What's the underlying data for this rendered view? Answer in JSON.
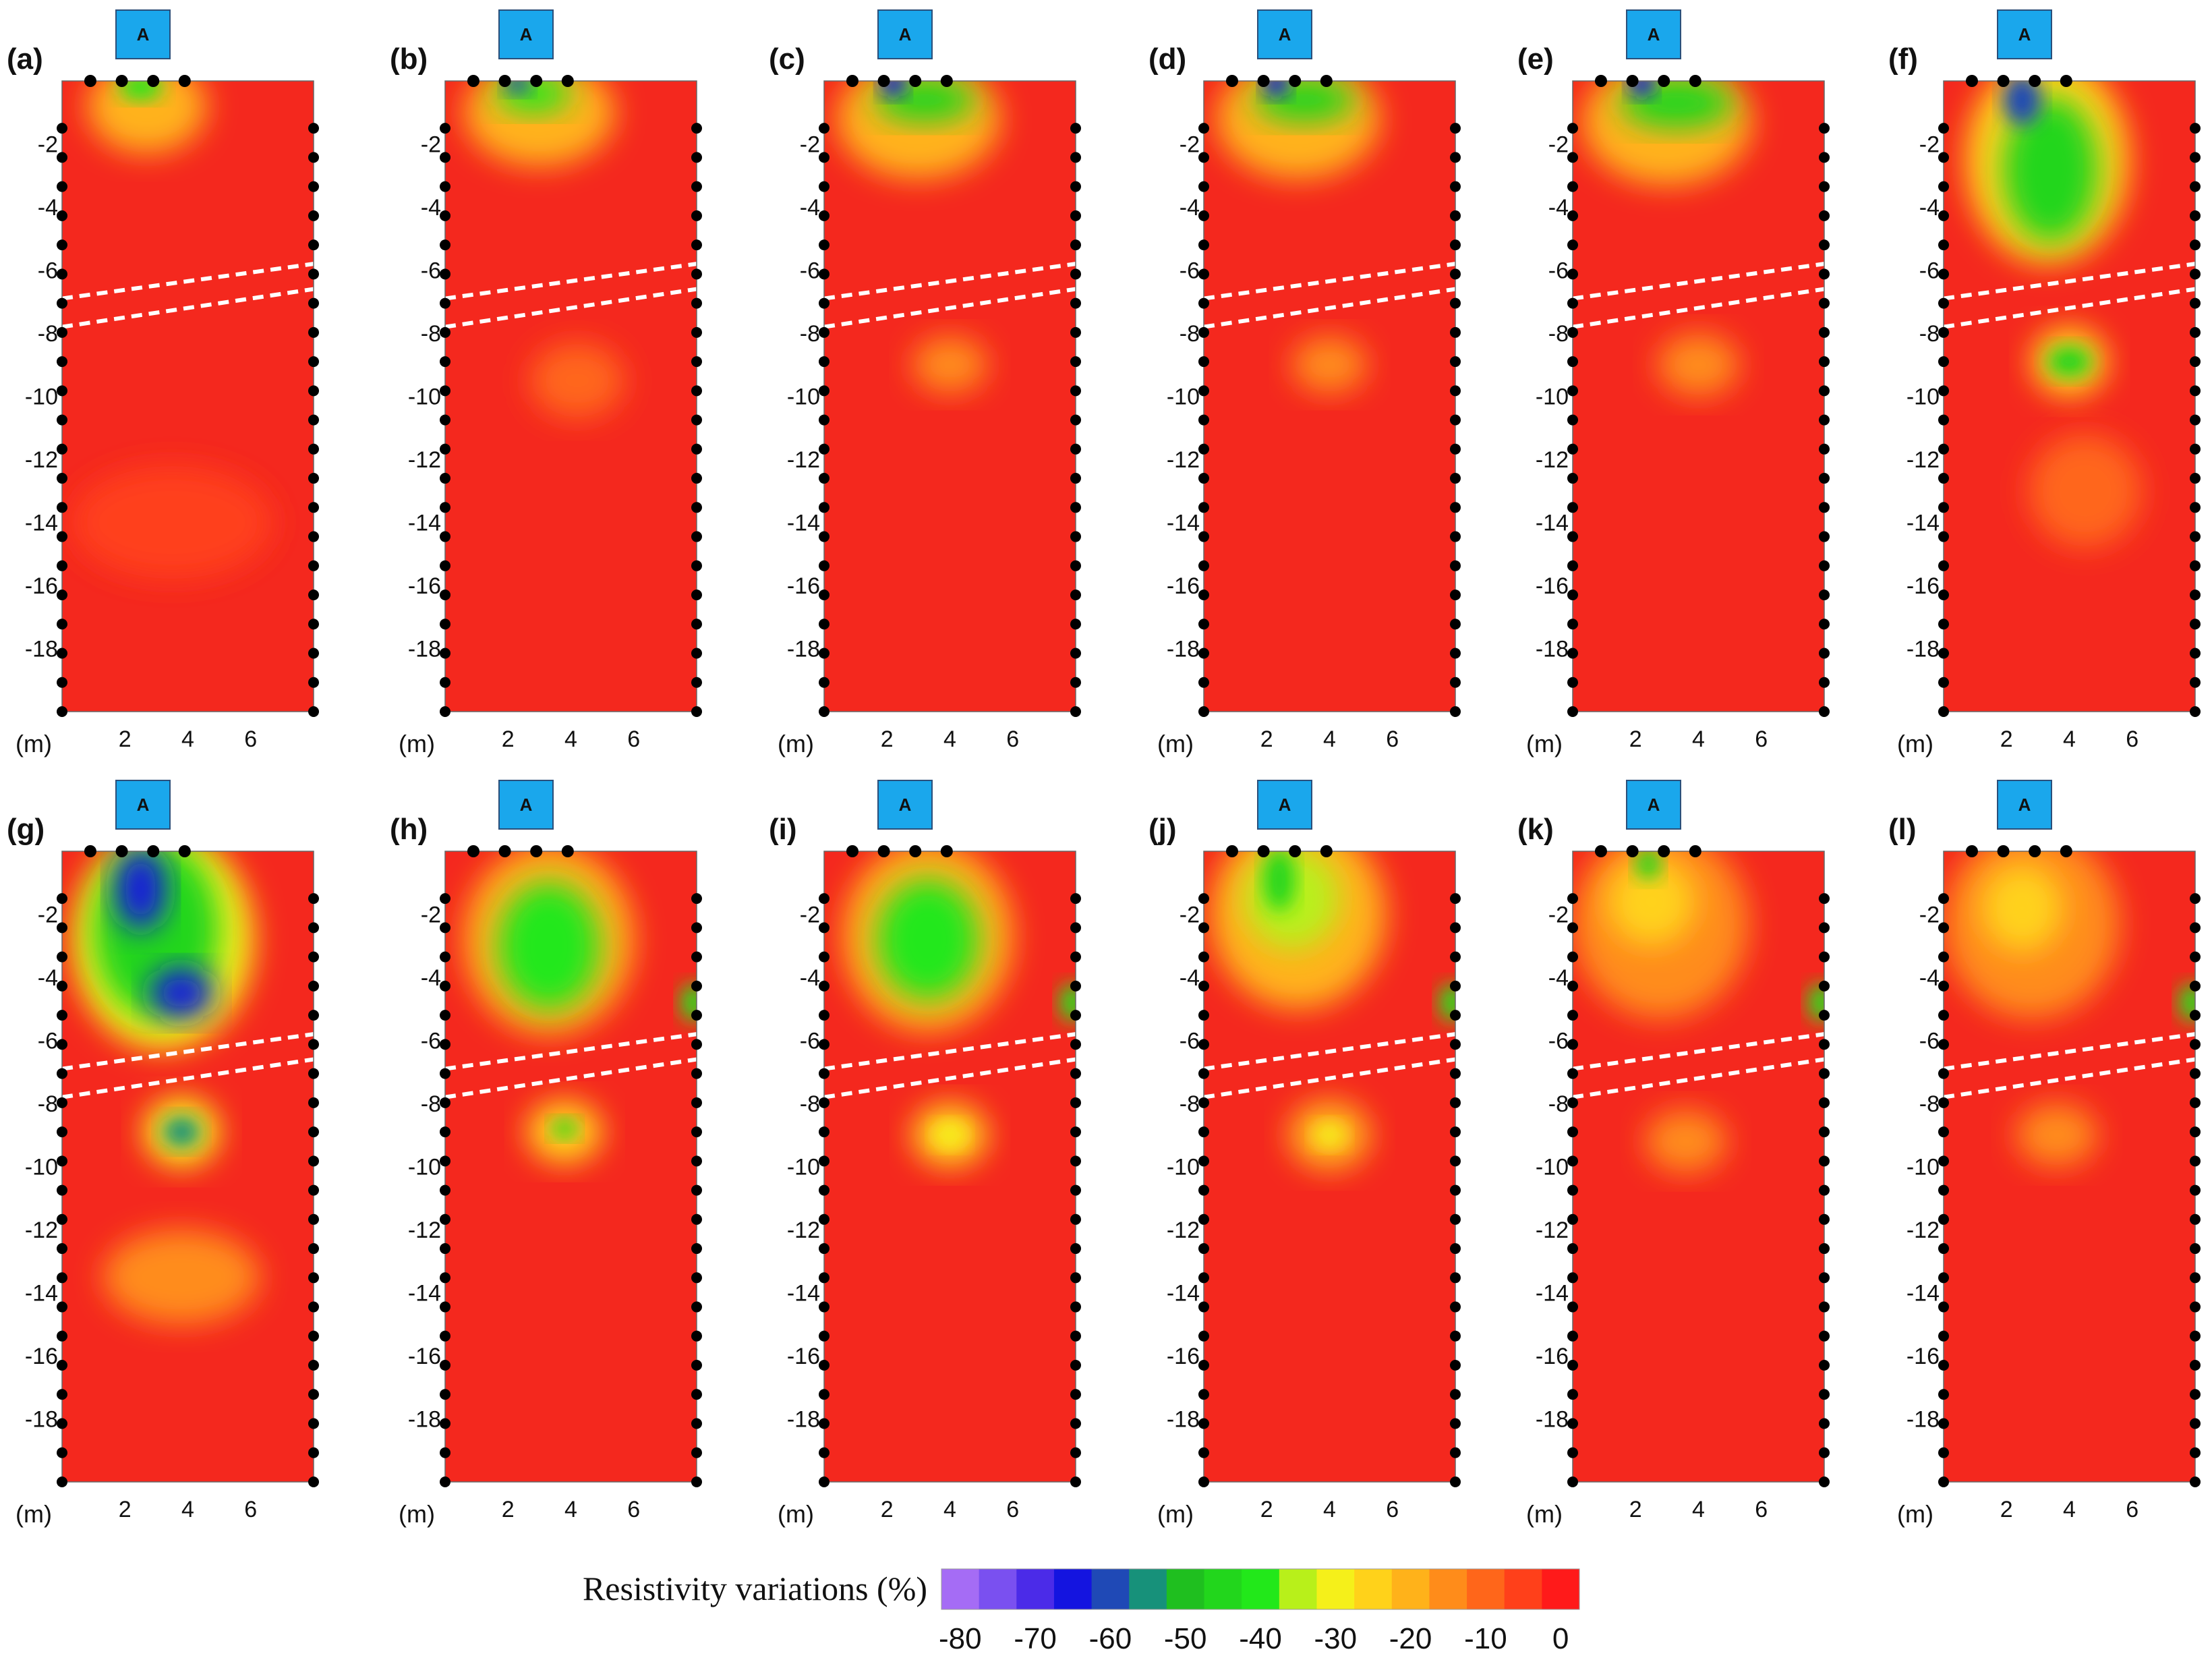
{
  "figure": {
    "marker_text": "A",
    "unit_label": "(m)"
  },
  "chart_data": {
    "type": "heatmap",
    "subtype": "resistivity-variation cross-sections (12 panels)",
    "x_axis": {
      "unit": "m",
      "range": [
        0,
        8
      ],
      "tick_values": [
        2,
        4,
        6
      ]
    },
    "y_axis": {
      "unit": "m",
      "range": [
        -20,
        0
      ],
      "tick_values": [
        -2,
        -4,
        -6,
        -8,
        -10,
        -12,
        -14,
        -16,
        -18
      ]
    },
    "colorbar": {
      "title": "Resistivity variations (%)",
      "range": [
        -80,
        0
      ],
      "tick_values": [
        -80,
        -70,
        -60,
        -50,
        -40,
        -30,
        -20,
        -10,
        0
      ],
      "bins": [
        {
          "from": -80,
          "to": -75,
          "color": "#a56cf5"
        },
        {
          "from": -75,
          "to": -70,
          "color": "#7a50f0"
        },
        {
          "from": -70,
          "to": -65,
          "color": "#4b2be8"
        },
        {
          "from": -65,
          "to": -60,
          "color": "#1414e0"
        },
        {
          "from": -60,
          "to": -55,
          "color": "#1f49b6"
        },
        {
          "from": -55,
          "to": -50,
          "color": "#17917a"
        },
        {
          "from": -50,
          "to": -45,
          "color": "#1fbf1f"
        },
        {
          "from": -45,
          "to": -40,
          "color": "#22d61c"
        },
        {
          "from": -40,
          "to": -35,
          "color": "#22e81a"
        },
        {
          "from": -35,
          "to": -30,
          "color": "#b8f01a"
        },
        {
          "from": -30,
          "to": -25,
          "color": "#f5f01a"
        },
        {
          "from": -25,
          "to": -20,
          "color": "#ffd21a"
        },
        {
          "from": -20,
          "to": -15,
          "color": "#ffb21a"
        },
        {
          "from": -15,
          "to": -10,
          "color": "#ff8c1a"
        },
        {
          "from": -10,
          "to": -5,
          "color": "#ff661a"
        },
        {
          "from": -5,
          "to": 0,
          "color": "#ff401a"
        },
        {
          "from": 0,
          "to": 5,
          "color": "#ff1a1a"
        }
      ]
    },
    "background_color": "#f4281e",
    "fracture_band": {
      "left_depths": [
        -6.9,
        -7.8
      ],
      "right_depths": [
        -5.8,
        -6.6
      ]
    },
    "panels": [
      {
        "label": "(a)",
        "anomalies": [
          {
            "x": 2.7,
            "depth": -0.8,
            "rx": 1.9,
            "ry": 1.5,
            "value": -20
          },
          {
            "x": 2.5,
            "depth": -0.2,
            "rx": 0.7,
            "ry": 0.4,
            "value": -38
          },
          {
            "x": 3.5,
            "depth": -14.0,
            "rx": 3.2,
            "ry": 1.8,
            "value": -4
          }
        ]
      },
      {
        "label": "(b)",
        "anomalies": [
          {
            "x": 3.0,
            "depth": -1.0,
            "rx": 2.4,
            "ry": 1.7,
            "value": -20
          },
          {
            "x": 2.8,
            "depth": -0.4,
            "rx": 1.2,
            "ry": 0.6,
            "value": -40
          },
          {
            "x": 2.3,
            "depth": -0.1,
            "rx": 0.4,
            "ry": 0.3,
            "value": -60
          },
          {
            "x": 4.2,
            "depth": -9.5,
            "rx": 1.5,
            "ry": 1.2,
            "value": -8
          }
        ]
      },
      {
        "label": "(c)",
        "anomalies": [
          {
            "x": 3.0,
            "depth": -1.2,
            "rx": 2.6,
            "ry": 1.9,
            "value": -20
          },
          {
            "x": 3.2,
            "depth": -0.6,
            "rx": 1.6,
            "ry": 0.7,
            "value": -42
          },
          {
            "x": 2.2,
            "depth": -0.1,
            "rx": 0.4,
            "ry": 0.4,
            "value": -62
          },
          {
            "x": 4.0,
            "depth": -9.0,
            "rx": 1.2,
            "ry": 0.9,
            "value": -15
          }
        ]
      },
      {
        "label": "(d)",
        "anomalies": [
          {
            "x": 3.0,
            "depth": -1.2,
            "rx": 2.6,
            "ry": 1.9,
            "value": -20
          },
          {
            "x": 3.2,
            "depth": -0.6,
            "rx": 1.6,
            "ry": 0.7,
            "value": -42
          },
          {
            "x": 2.3,
            "depth": -0.1,
            "rx": 0.4,
            "ry": 0.4,
            "value": -62
          },
          {
            "x": 4.0,
            "depth": -9.0,
            "rx": 1.2,
            "ry": 0.9,
            "value": -15
          }
        ]
      },
      {
        "label": "(e)",
        "anomalies": [
          {
            "x": 3.0,
            "depth": -1.3,
            "rx": 2.7,
            "ry": 2.0,
            "value": -20
          },
          {
            "x": 3.3,
            "depth": -0.7,
            "rx": 1.8,
            "ry": 0.8,
            "value": -42
          },
          {
            "x": 2.2,
            "depth": -0.1,
            "rx": 0.4,
            "ry": 0.4,
            "value": -62
          },
          {
            "x": 4.0,
            "depth": -9.0,
            "rx": 1.3,
            "ry": 1.0,
            "value": -15
          }
        ]
      },
      {
        "label": "(f)",
        "anomalies": [
          {
            "x": 3.3,
            "depth": -2.5,
            "rx": 2.6,
            "ry": 3.3,
            "value": -22
          },
          {
            "x": 3.4,
            "depth": -2.8,
            "rx": 1.5,
            "ry": 2.3,
            "value": -42
          },
          {
            "x": 2.5,
            "depth": -0.6,
            "rx": 0.6,
            "ry": 0.8,
            "value": -58
          },
          {
            "x": 4.0,
            "depth": -8.9,
            "rx": 1.2,
            "ry": 1.1,
            "value": -25
          },
          {
            "x": 4.0,
            "depth": -8.9,
            "rx": 0.7,
            "ry": 0.5,
            "value": -42
          },
          {
            "x": 4.5,
            "depth": -13.0,
            "rx": 1.8,
            "ry": 1.8,
            "value": -10
          }
        ]
      },
      {
        "label": "(g)",
        "anomalies": [
          {
            "x": 3.2,
            "depth": -2.8,
            "rx": 2.9,
            "ry": 3.5,
            "value": -30
          },
          {
            "x": 3.0,
            "depth": -2.5,
            "rx": 2.0,
            "ry": 2.8,
            "value": -45
          },
          {
            "x": 2.5,
            "depth": -1.2,
            "rx": 0.8,
            "ry": 1.3,
            "value": -65
          },
          {
            "x": 3.8,
            "depth": -4.5,
            "rx": 1.0,
            "ry": 0.8,
            "value": -62
          },
          {
            "x": 3.8,
            "depth": -8.9,
            "rx": 1.2,
            "ry": 1.1,
            "value": -30
          },
          {
            "x": 3.8,
            "depth": -8.9,
            "rx": 0.6,
            "ry": 0.5,
            "value": -55
          },
          {
            "x": 3.8,
            "depth": -13.5,
            "rx": 2.5,
            "ry": 1.5,
            "value": -12
          }
        ]
      },
      {
        "label": "(h)",
        "anomalies": [
          {
            "x": 3.3,
            "depth": -2.8,
            "rx": 2.7,
            "ry": 3.0,
            "value": -20
          },
          {
            "x": 3.3,
            "depth": -3.0,
            "rx": 1.6,
            "ry": 2.0,
            "value": -38
          },
          {
            "x": 3.8,
            "depth": -8.9,
            "rx": 1.2,
            "ry": 1.0,
            "value": -22
          },
          {
            "x": 3.8,
            "depth": -8.8,
            "rx": 0.4,
            "ry": 0.3,
            "value": -45
          },
          {
            "x": 7.9,
            "depth": -4.8,
            "rx": 0.4,
            "ry": 0.6,
            "value": -40
          }
        ]
      },
      {
        "label": "(i)",
        "anomalies": [
          {
            "x": 3.3,
            "depth": -2.7,
            "rx": 2.7,
            "ry": 3.0,
            "value": -20
          },
          {
            "x": 3.3,
            "depth": -2.8,
            "rx": 1.6,
            "ry": 1.9,
            "value": -36
          },
          {
            "x": 4.0,
            "depth": -9.0,
            "rx": 1.2,
            "ry": 1.0,
            "value": -22
          },
          {
            "x": 4.0,
            "depth": -9.0,
            "rx": 0.5,
            "ry": 0.4,
            "value": -30
          },
          {
            "x": 7.9,
            "depth": -4.8,
            "rx": 0.4,
            "ry": 0.6,
            "value": -40
          }
        ]
      },
      {
        "label": "(j)",
        "anomalies": [
          {
            "x": 3.0,
            "depth": -2.0,
            "rx": 2.8,
            "ry": 3.0,
            "value": -20
          },
          {
            "x": 2.8,
            "depth": -1.5,
            "rx": 1.5,
            "ry": 1.6,
            "value": -32
          },
          {
            "x": 2.4,
            "depth": -0.9,
            "rx": 0.5,
            "ry": 1.0,
            "value": -42
          },
          {
            "x": 4.0,
            "depth": -9.0,
            "rx": 1.3,
            "ry": 1.1,
            "value": -20
          },
          {
            "x": 4.0,
            "depth": -9.0,
            "rx": 0.5,
            "ry": 0.4,
            "value": -28
          },
          {
            "x": 7.9,
            "depth": -4.8,
            "rx": 0.4,
            "ry": 0.6,
            "value": -40
          }
        ]
      },
      {
        "label": "(k)",
        "anomalies": [
          {
            "x": 2.8,
            "depth": -2.3,
            "rx": 2.8,
            "ry": 3.0,
            "value": -15
          },
          {
            "x": 2.5,
            "depth": -1.6,
            "rx": 1.4,
            "ry": 1.4,
            "value": -24
          },
          {
            "x": 2.4,
            "depth": -0.4,
            "rx": 0.4,
            "ry": 0.5,
            "value": -42
          },
          {
            "x": 3.6,
            "depth": -9.2,
            "rx": 1.3,
            "ry": 1.0,
            "value": -13
          },
          {
            "x": 7.9,
            "depth": -4.8,
            "rx": 0.4,
            "ry": 0.6,
            "value": -40
          }
        ]
      },
      {
        "label": "(l)",
        "anomalies": [
          {
            "x": 2.8,
            "depth": -2.3,
            "rx": 2.8,
            "ry": 3.0,
            "value": -15
          },
          {
            "x": 2.5,
            "depth": -1.8,
            "rx": 1.3,
            "ry": 1.4,
            "value": -24
          },
          {
            "x": 3.6,
            "depth": -9.0,
            "rx": 1.3,
            "ry": 1.0,
            "value": -13
          },
          {
            "x": 7.9,
            "depth": -4.8,
            "rx": 0.4,
            "ry": 0.6,
            "value": -40
          }
        ]
      }
    ]
  }
}
